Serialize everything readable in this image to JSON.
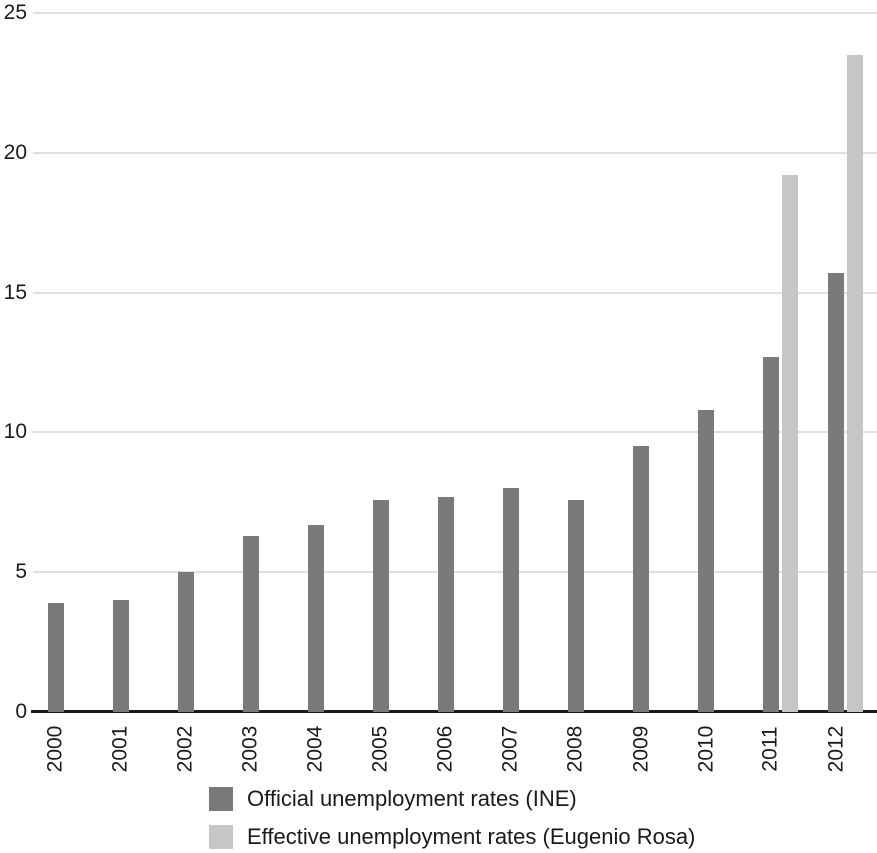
{
  "chart_data": {
    "type": "bar",
    "title": "",
    "xlabel": "",
    "ylabel": "",
    "categories": [
      "2000",
      "2001",
      "2002",
      "2003",
      "2004",
      "2005",
      "2006",
      "2007",
      "2008",
      "2009",
      "2010",
      "2011",
      "2012"
    ],
    "series": [
      {
        "name": "Official unemployment rates (INE)",
        "color": "#7a7a7a",
        "values": [
          3.9,
          4.0,
          5.0,
          6.3,
          6.7,
          7.6,
          7.7,
          8.0,
          7.6,
          9.5,
          10.8,
          12.7,
          15.7
        ]
      },
      {
        "name": "Effective unemployment rates (Eugenio Rosa)",
        "color": "#c6c6c6",
        "values": [
          null,
          null,
          null,
          null,
          null,
          null,
          null,
          null,
          null,
          null,
          null,
          19.2,
          23.5
        ]
      }
    ],
    "ylim": [
      0,
      25
    ],
    "y_ticks": [
      0,
      5,
      10,
      15,
      20,
      25
    ],
    "y_tick_labels": [
      "0",
      "5",
      "10",
      "15",
      "20",
      "25"
    ],
    "grid": "horizontal",
    "grid_color": "#e0e0e0",
    "axis_color": "#1a1a1a",
    "text_color": "#1a1a1a",
    "legend_position": "bottom-left"
  }
}
